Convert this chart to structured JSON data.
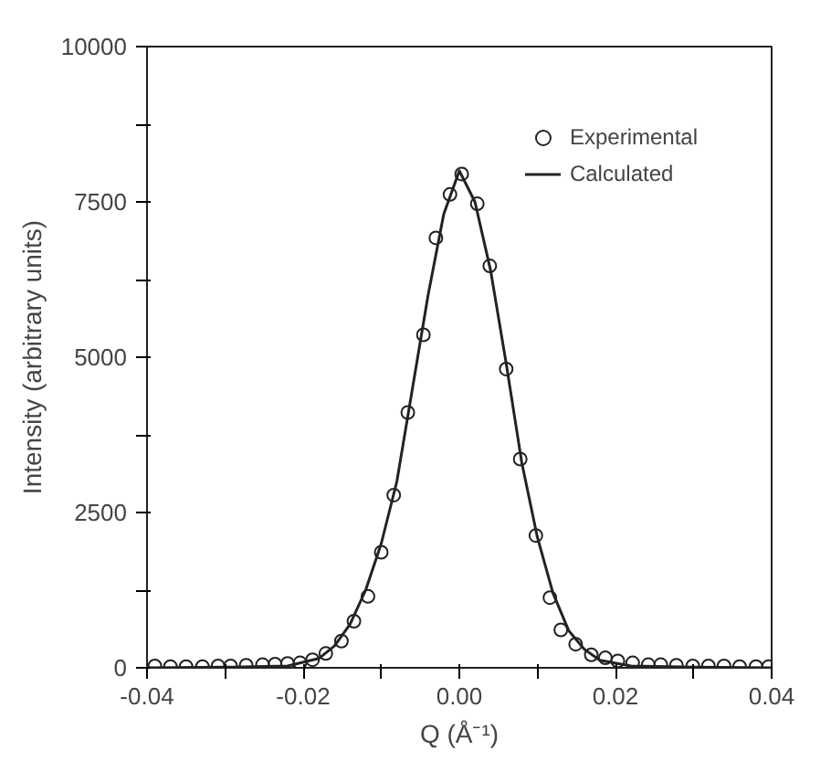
{
  "chart_data": {
    "type": "scatter",
    "xlabel": "Q (Å⁻¹)",
    "ylabel": "Intensity (arbitrary units)",
    "xlim": [
      -0.04,
      0.04
    ],
    "ylim": [
      0,
      10000
    ],
    "xticks": [
      {
        "value": -0.04,
        "label": "-0.04"
      },
      {
        "value": -0.03,
        "label": null
      },
      {
        "value": -0.02,
        "label": "-0.02"
      },
      {
        "value": -0.01,
        "label": null
      },
      {
        "value": 0,
        "label": "0.00"
      },
      {
        "value": 0.01,
        "label": null
      },
      {
        "value": 0.02,
        "label": "0.02"
      },
      {
        "value": 0.03,
        "label": null
      },
      {
        "value": 0.04,
        "label": "0.04"
      }
    ],
    "yticks": [
      0,
      {
        "value": 1250,
        "label": null
      },
      2500,
      {
        "value": 3750,
        "label": null
      },
      5000,
      {
        "value": 6250,
        "label": null
      },
      7500,
      {
        "value": 8750,
        "label": null
      },
      10000
    ],
    "grid": false,
    "legend": "top right",
    "series": [
      {
        "name": "Experimental",
        "marker": "circle",
        "color": "#222222",
        "x": [
          -0.039,
          -0.037,
          -0.035,
          -0.0329,
          -0.0309,
          -0.0293,
          -0.0273,
          -0.0252,
          -0.0236,
          -0.022,
          -0.0204,
          -0.0188,
          -0.0171,
          -0.0151,
          -0.0135,
          -0.0117,
          -0.01,
          -0.0084,
          -0.0066,
          -0.0046,
          -0.003,
          -0.0012,
          0.0003,
          0.0023,
          0.0039,
          0.006,
          0.0078,
          0.0098,
          0.0116,
          0.013,
          0.0149,
          0.0169,
          0.0187,
          0.0203,
          0.0222,
          0.0242,
          0.0258,
          0.0278,
          0.0299,
          0.0319,
          0.0339,
          0.0359,
          0.038,
          0.0396
        ],
        "values": [
          30,
          20,
          20,
          20,
          30,
          30,
          40,
          50,
          60,
          70,
          80,
          130,
          230,
          430,
          750,
          1150,
          1860,
          2780,
          4110,
          5360,
          6920,
          7620,
          7950,
          7470,
          6470,
          4810,
          3360,
          2130,
          1130,
          610,
          380,
          210,
          160,
          110,
          80,
          50,
          50,
          40,
          30,
          30,
          30,
          20,
          20,
          20
        ]
      },
      {
        "name": "Calculated",
        "type": "line",
        "marker": "none",
        "line_style": "solid",
        "color": "#222222",
        "x": [
          -0.04,
          -0.03,
          -0.022,
          -0.018,
          -0.016,
          -0.014,
          -0.012,
          -0.01,
          -0.008,
          -0.006,
          -0.004,
          -0.002,
          0,
          0.002,
          0.004,
          0.006,
          0.008,
          0.01,
          0.012,
          0.014,
          0.016,
          0.018,
          0.022,
          0.03,
          0.04
        ],
        "values": [
          0,
          10,
          30,
          150,
          350,
          700,
          1250,
          2000,
          3000,
          4500,
          6000,
          7300,
          8000,
          7500,
          6400,
          4900,
          3300,
          2100,
          1200,
          600,
          300,
          120,
          30,
          10,
          0
        ]
      }
    ]
  }
}
